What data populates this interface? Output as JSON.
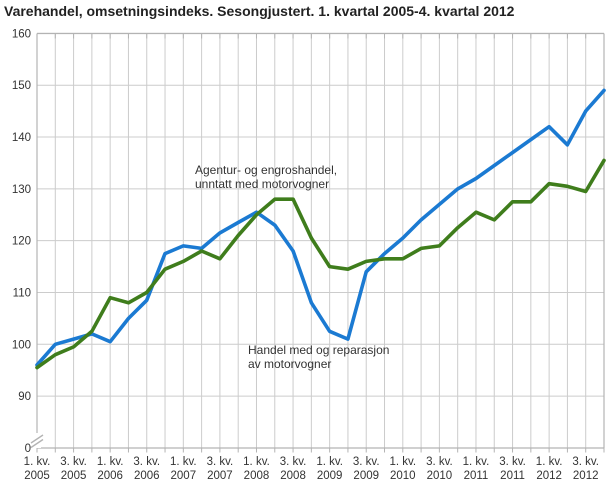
{
  "title": "Varehandel, omsetningsindeks. Sesongjustert. 1. kvartal 2005-4. kvartal 2012",
  "annotations": {
    "agentur": {
      "line1": "Agentur- og engroshandel,",
      "line2": "unntatt med motorvogner"
    },
    "motor": {
      "line1": "Handel med og reparasjon",
      "line2": "av motorvogner"
    }
  },
  "colors": {
    "agentur_line": "#1b7ad2",
    "motor_line": "#3f7d1c",
    "gridline": "#cccccc",
    "frame": "#b3b3b3",
    "tick_text": "#333333",
    "title_text": "#222222",
    "background": "#ffffff"
  },
  "chart_data": {
    "type": "line",
    "title": "Varehandel, omsetningsindeks. Sesongjustert. 1. kvartal 2005-4. kvartal 2012",
    "xlabel": "",
    "ylabel": "",
    "grid": true,
    "legend_position": "inline-annotations",
    "y_axis": {
      "ticks": [
        0,
        90,
        100,
        110,
        120,
        130,
        140,
        150,
        160
      ],
      "axis_break_between": [
        0,
        90
      ],
      "ylim_plotted": [
        90,
        160
      ]
    },
    "x_tick_labels": [
      {
        "q": "1. kv.",
        "year": "2005"
      },
      {
        "q": "3. kv.",
        "year": "2005"
      },
      {
        "q": "1. kv.",
        "year": "2006"
      },
      {
        "q": "3. kv.",
        "year": "2006"
      },
      {
        "q": "1. kv.",
        "year": "2007"
      },
      {
        "q": "3. kv.",
        "year": "2007"
      },
      {
        "q": "1. kv.",
        "year": "2008"
      },
      {
        "q": "3. kv.",
        "year": "2008"
      },
      {
        "q": "1. kv.",
        "year": "2009"
      },
      {
        "q": "3. kv.",
        "year": "2009"
      },
      {
        "q": "1. kv.",
        "year": "2010"
      },
      {
        "q": "3. kv.",
        "year": "2010"
      },
      {
        "q": "1. kv.",
        "year": "2011"
      },
      {
        "q": "3. kv.",
        "year": "2011"
      },
      {
        "q": "1. kv.",
        "year": "2012"
      },
      {
        "q": "3. kv.",
        "year": "2012"
      }
    ],
    "categories": [
      "1. kv. 2005",
      "2. kv. 2005",
      "3. kv. 2005",
      "4. kv. 2005",
      "1. kv. 2006",
      "2. kv. 2006",
      "3. kv. 2006",
      "4. kv. 2006",
      "1. kv. 2007",
      "2. kv. 2007",
      "3. kv. 2007",
      "4. kv. 2007",
      "1. kv. 2008",
      "2. kv. 2008",
      "3. kv. 2008",
      "4. kv. 2008",
      "1. kv. 2009",
      "2. kv. 2009",
      "3. kv. 2009",
      "4. kv. 2009",
      "1. kv. 2010",
      "2. kv. 2010",
      "3. kv. 2010",
      "4. kv. 2010",
      "1. kv. 2011",
      "2. kv. 2011",
      "3. kv. 2011",
      "4. kv. 2011",
      "1. kv. 2012",
      "2. kv. 2012",
      "3. kv. 2012",
      "4. kv. 2012"
    ],
    "series": [
      {
        "name": "Agentur- og engroshandel, unntatt med motorvogner",
        "color": "#1b7ad2",
        "values": [
          96,
          100,
          101,
          102,
          100.5,
          105,
          108.5,
          117.5,
          119,
          118.5,
          121.5,
          123.5,
          125.5,
          123,
          118,
          108,
          102.5,
          101,
          114,
          117.5,
          120.5,
          124,
          127,
          130,
          132,
          134.5,
          137,
          139.5,
          142,
          138.5,
          145,
          149
        ]
      },
      {
        "name": "Handel med og reparasjon av motorvogner",
        "color": "#3f7d1c",
        "values": [
          95.5,
          98,
          99.5,
          102.5,
          109,
          108,
          110,
          114.5,
          116,
          118,
          116.5,
          121,
          125,
          128,
          128,
          120.5,
          115,
          114.5,
          116,
          116.5,
          116.5,
          118.5,
          119,
          122.5,
          125.5,
          124,
          127.5,
          127.5,
          131,
          130.5,
          129.5,
          135.5
        ]
      }
    ]
  }
}
